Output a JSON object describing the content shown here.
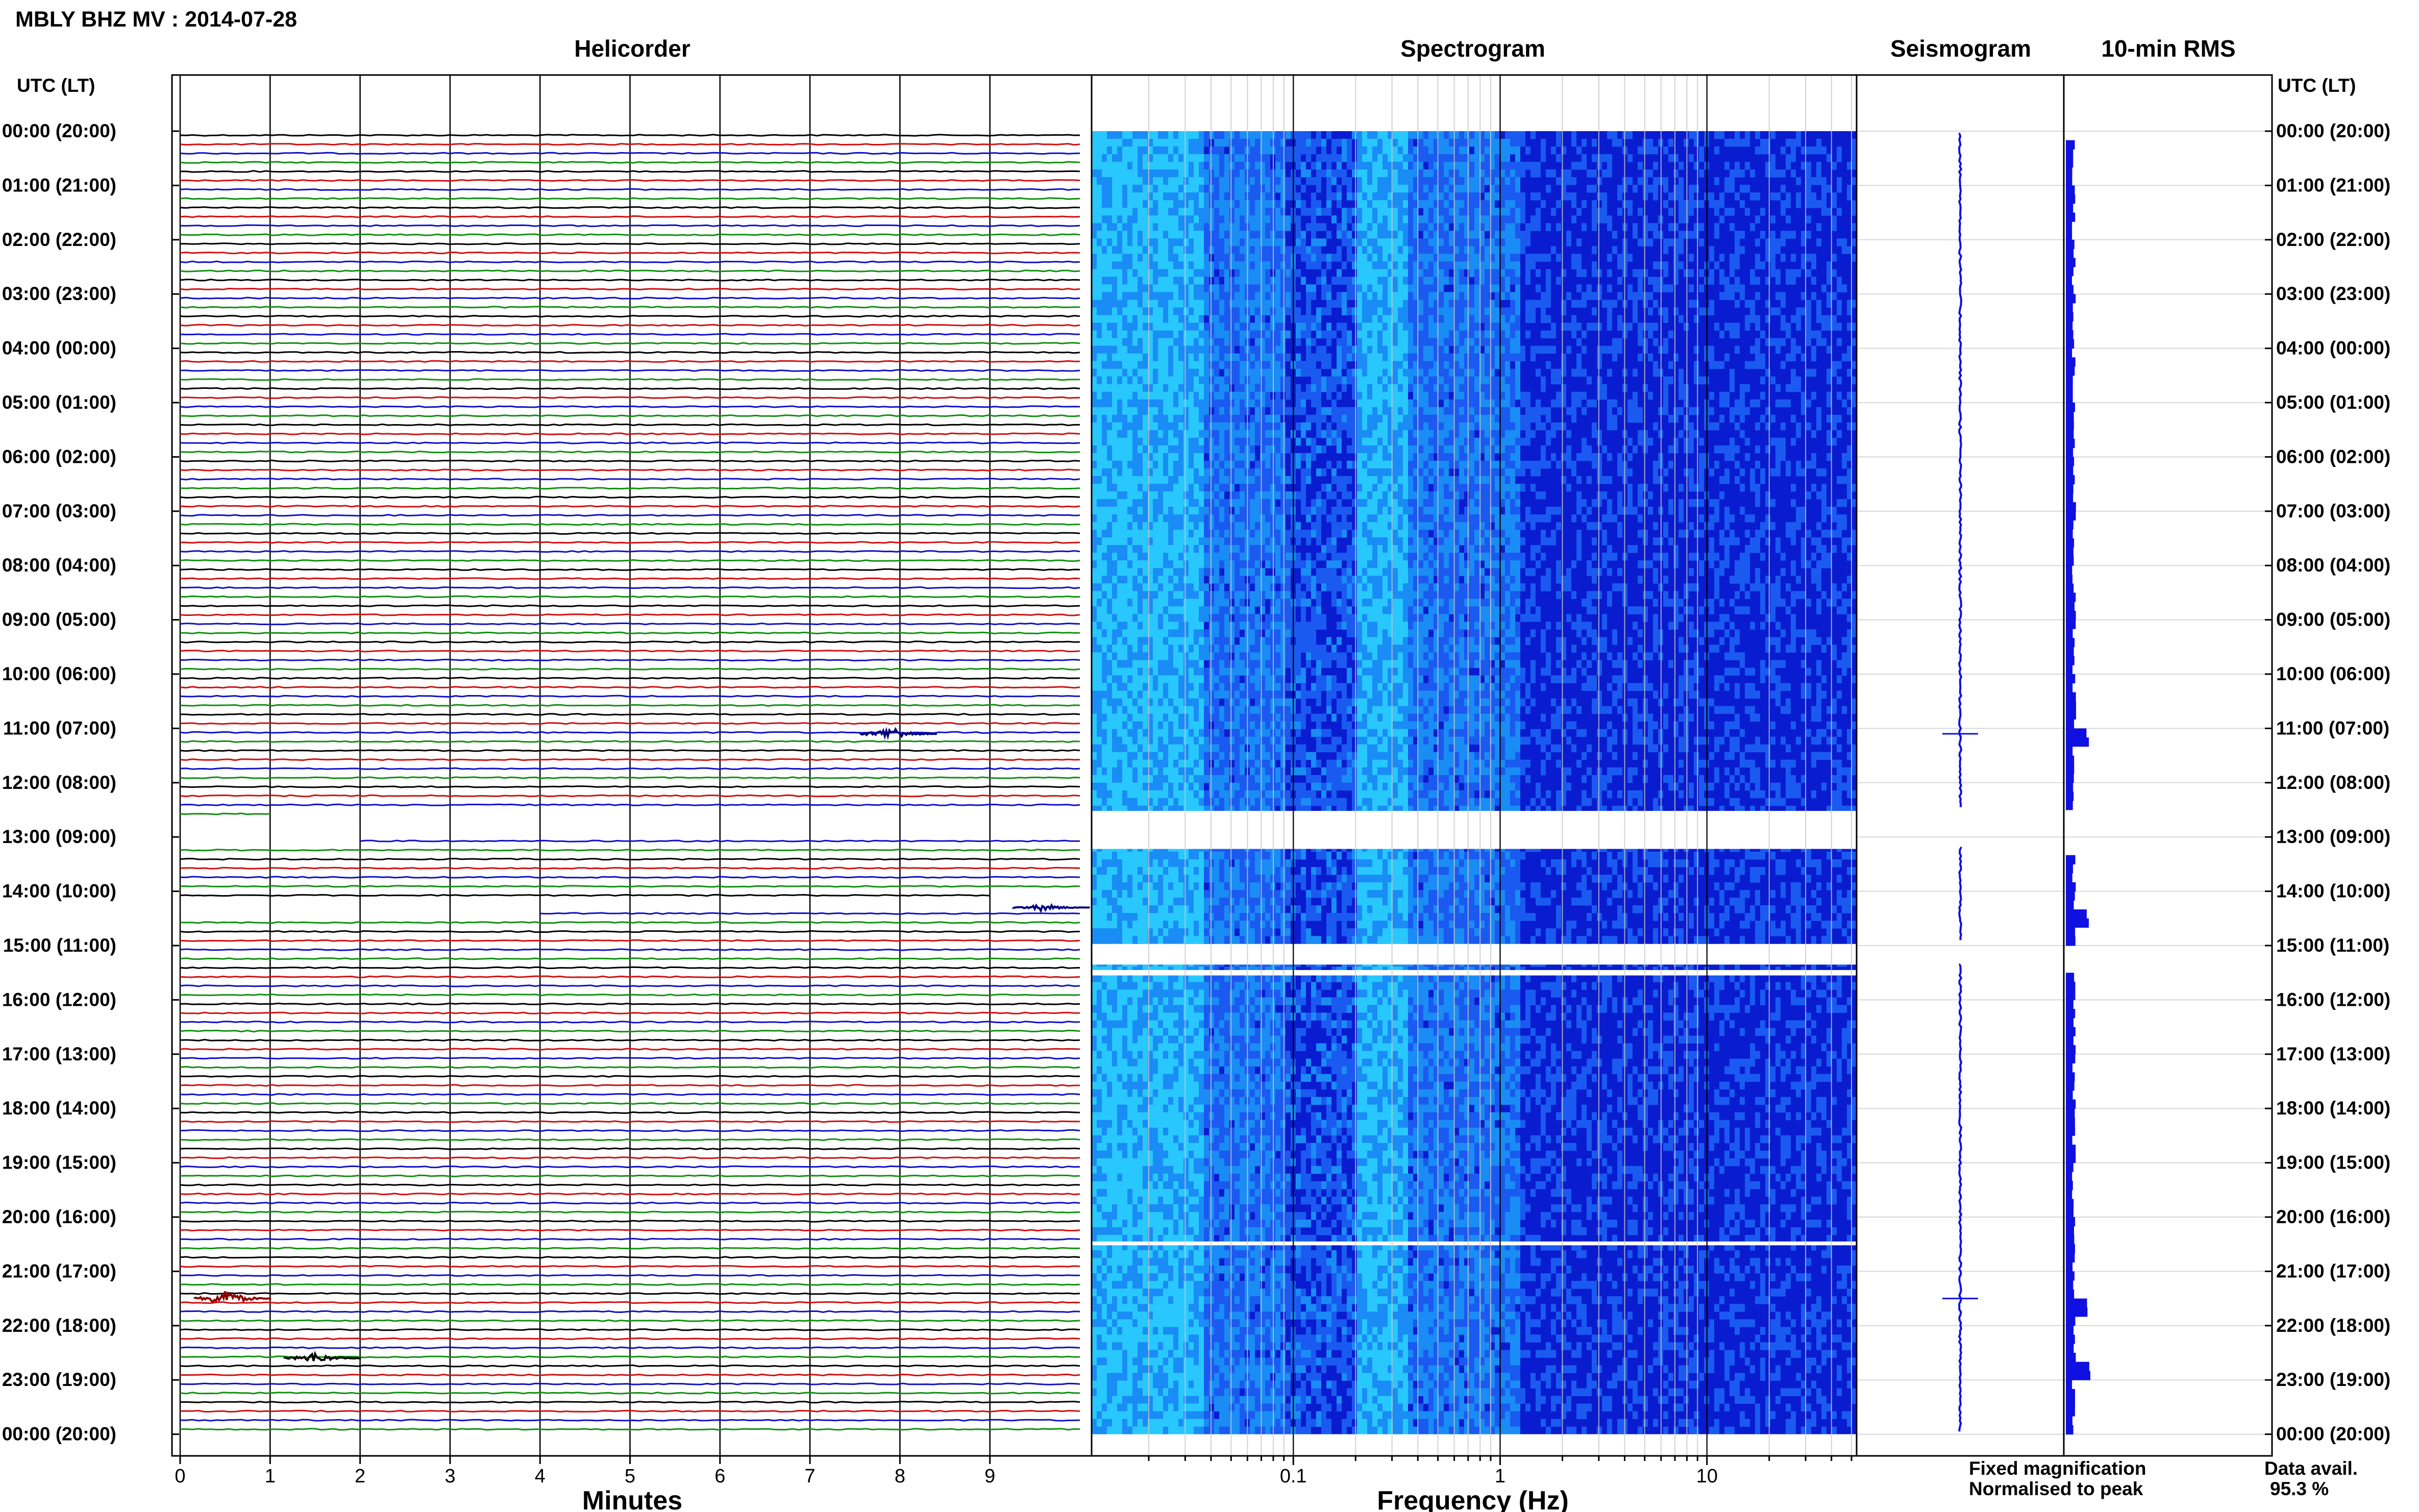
{
  "title": "MBLY BHZ MV : 2014-07-28",
  "panels": {
    "helicorder": "Helicorder",
    "spectrogram": "Spectrogram",
    "seismogram": "Seismogram",
    "rms": "10-min RMS"
  },
  "time_axis_label": "UTC (LT)",
  "time_labels": [
    "00:00 (20:00)",
    "01:00 (21:00)",
    "02:00 (22:00)",
    "03:00 (23:00)",
    "04:00 (00:00)",
    "05:00 (01:00)",
    "06:00 (02:00)",
    "07:00 (03:00)",
    "08:00 (04:00)",
    "09:00 (05:00)",
    "10:00 (06:00)",
    "11:00 (07:00)",
    "12:00 (08:00)",
    "13:00 (09:00)",
    "14:00 (10:00)",
    "15:00 (11:00)",
    "16:00 (12:00)",
    "17:00 (13:00)",
    "18:00 (14:00)",
    "19:00 (15:00)",
    "20:00 (16:00)",
    "21:00 (17:00)",
    "22:00 (18:00)",
    "23:00 (19:00)",
    "00:00 (20:00)"
  ],
  "legend": {
    "fixed": "Fixed magnification",
    "normalised": "Normalised to peak",
    "fixed_color": "#1515e6",
    "normalised_color": "#e61515"
  },
  "data_avail": {
    "label": "Data avail.",
    "value": "95.3 %"
  },
  "chart_data": [
    {
      "type": "line",
      "name": "helicorder",
      "title": "Helicorder",
      "xlabel": "Minutes",
      "x_ticks": [
        "0",
        "1",
        "2",
        "3",
        "4",
        "5",
        "6",
        "7",
        "8",
        "9"
      ],
      "xlim": [
        0,
        10
      ],
      "ylim_hours": [
        0,
        24
      ],
      "rows_per_hour": 6,
      "row_colors": [
        "#000000",
        "#d01010",
        "#1010c8",
        "#109010"
      ],
      "gaps_minutes": [
        {
          "start": 751,
          "end": 782
        },
        {
          "start": 849,
          "end": 864
        }
      ],
      "events": [
        {
          "hour": 11.1,
          "minute": 7.9,
          "color": "#000080",
          "amp": 4
        },
        {
          "hour": 21.5,
          "minute": 0.5,
          "color": "#8b0000",
          "amp": 5
        },
        {
          "hour": 22.6,
          "minute": 1.5,
          "color": "#000000",
          "amp": 3
        },
        {
          "hour": 14.3,
          "minute": 9.6,
          "color": "#000080",
          "amp": 2
        }
      ]
    },
    {
      "type": "heatmap",
      "name": "spectrogram",
      "title": "Spectrogram",
      "xlabel": "Frequency (Hz)",
      "x_scale": "log",
      "xlim": [
        0.01,
        50
      ],
      "x_ticks": [
        "0.1",
        "1",
        "10"
      ],
      "ylim_hours": [
        0,
        24
      ],
      "colormap": [
        "#0a14c8",
        "#1a5af0",
        "#28c8ff"
      ],
      "gaps_hours": [
        {
          "start": 12.52,
          "end": 13.22
        },
        {
          "start": 14.97,
          "end": 15.35
        },
        {
          "start": 15.45,
          "end": 15.55
        },
        {
          "start": 20.45,
          "end": 20.52
        }
      ]
    },
    {
      "type": "line",
      "name": "seismogram",
      "title": "Seismogram",
      "ylim_hours": [
        0,
        24
      ],
      "events_hours": [
        11.1,
        21.5
      ]
    },
    {
      "type": "bar",
      "name": "rms",
      "title": "10-min RMS",
      "ylim_hours": [
        0,
        24
      ],
      "color": "#1010e0",
      "spikes_hours": [
        11.1,
        14.4,
        21.6,
        22.8
      ]
    }
  ]
}
